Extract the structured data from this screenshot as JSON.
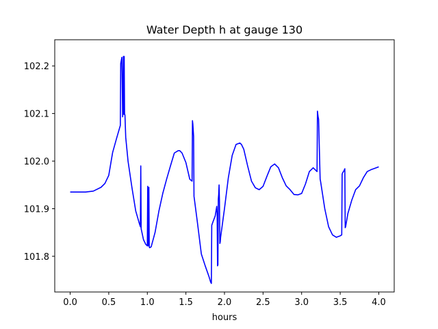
{
  "chart_data": {
    "type": "line",
    "title": "Water Depth h at gauge 130",
    "xlabel": "hours",
    "ylabel": "",
    "xlim": [
      -0.2,
      4.2
    ],
    "ylim": [
      101.725,
      102.255
    ],
    "xticks": [
      0.0,
      0.5,
      1.0,
      1.5,
      2.0,
      2.5,
      3.0,
      3.5,
      4.0
    ],
    "xtick_labels": [
      "0.0",
      "0.5",
      "1.0",
      "1.5",
      "2.0",
      "2.5",
      "3.0",
      "3.5",
      "4.0"
    ],
    "yticks": [
      101.8,
      101.9,
      102.0,
      102.1,
      102.2
    ],
    "ytick_labels": [
      "101.8",
      "101.9",
      "102.0",
      "102.1",
      "102.2"
    ],
    "grid": false,
    "legend": "none",
    "series": [
      {
        "color": "#0000ff",
        "x": [
          0.0,
          0.2,
          0.3,
          0.4,
          0.45,
          0.5,
          0.55,
          0.6,
          0.65,
          0.655,
          0.67,
          0.68,
          0.69,
          0.695,
          0.7,
          0.705,
          0.71,
          0.72,
          0.75,
          0.8,
          0.85,
          0.9,
          0.91,
          0.915,
          0.92,
          0.95,
          0.98,
          1.0,
          1.005,
          1.01,
          1.02,
          1.025,
          1.03,
          1.05,
          1.1,
          1.15,
          1.2,
          1.25,
          1.3,
          1.35,
          1.4,
          1.42,
          1.45,
          1.5,
          1.55,
          1.58,
          1.585,
          1.59,
          1.6,
          1.605,
          1.61,
          1.65,
          1.7,
          1.75,
          1.8,
          1.82,
          1.83,
          1.835,
          1.85,
          1.88,
          1.9,
          1.905,
          1.91,
          1.915,
          1.92,
          1.925,
          1.93,
          1.935,
          1.94,
          1.945,
          1.95,
          2.0,
          2.05,
          2.1,
          2.15,
          2.2,
          2.22,
          2.25,
          2.3,
          2.35,
          2.4,
          2.45,
          2.5,
          2.55,
          2.6,
          2.65,
          2.7,
          2.75,
          2.8,
          2.85,
          2.9,
          2.95,
          3.0,
          3.05,
          3.1,
          3.15,
          3.2,
          3.205,
          3.21,
          3.215,
          3.22,
          3.24,
          3.245,
          3.25,
          3.3,
          3.35,
          3.4,
          3.45,
          3.5,
          3.52,
          3.525,
          3.53,
          3.55,
          3.56,
          3.565,
          3.57,
          3.6,
          3.65,
          3.7,
          3.75,
          3.8,
          3.85,
          3.9,
          3.95,
          4.0
        ],
        "y": [
          101.935,
          101.935,
          101.937,
          101.945,
          101.953,
          101.97,
          102.018,
          102.047,
          102.075,
          102.205,
          102.218,
          102.093,
          102.22,
          102.098,
          102.22,
          102.099,
          102.097,
          102.05,
          102.0,
          101.945,
          101.895,
          101.867,
          101.862,
          101.99,
          101.858,
          101.835,
          101.825,
          101.822,
          101.947,
          101.822,
          101.945,
          101.82,
          101.818,
          101.82,
          101.85,
          101.895,
          101.932,
          101.962,
          101.99,
          102.017,
          102.022,
          102.022,
          102.017,
          101.997,
          101.962,
          101.958,
          102.085,
          102.078,
          102.052,
          101.926,
          101.92,
          101.87,
          101.805,
          101.78,
          101.757,
          101.746,
          101.743,
          101.865,
          101.872,
          101.885,
          101.905,
          101.89,
          101.78,
          101.782,
          101.92,
          101.93,
          101.95,
          101.917,
          101.827,
          101.83,
          101.84,
          101.9,
          101.965,
          102.012,
          102.035,
          102.038,
          102.035,
          102.025,
          101.99,
          101.958,
          101.944,
          101.94,
          101.947,
          101.968,
          101.988,
          101.994,
          101.986,
          101.965,
          101.948,
          101.94,
          101.93,
          101.929,
          101.932,
          101.952,
          101.978,
          101.986,
          101.978,
          102.105,
          102.098,
          102.092,
          102.088,
          101.962,
          101.958,
          101.953,
          101.9,
          101.862,
          101.845,
          101.84,
          101.843,
          101.845,
          101.972,
          101.975,
          101.98,
          101.984,
          101.86,
          101.862,
          101.89,
          101.918,
          101.94,
          101.948,
          101.965,
          101.978,
          101.982,
          101.985,
          101.988
        ]
      }
    ]
  }
}
